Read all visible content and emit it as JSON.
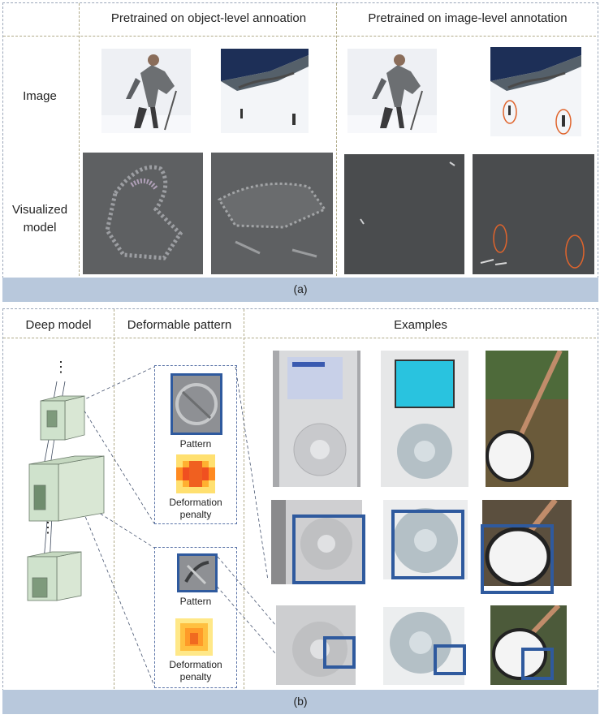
{
  "panel_a": {
    "header_object": "Pretrained on object-level annoation",
    "header_image": "Pretrained on image-level annotation",
    "row_image": "Image",
    "row_model": "Visualized model",
    "caption": "(a)"
  },
  "panel_b": {
    "col_deep": "Deep model",
    "col_pattern": "Deformable pattern",
    "col_examples": "Examples",
    "pattern_label_1": "Pattern",
    "deformation_label_1": "Deformation penalty",
    "pattern_label_2": "Pattern",
    "deformation_label_2": "Deformation penalty",
    "dots": "⋮",
    "caption": "(b)"
  },
  "colors": {
    "caption_bar": "#b8c8dc",
    "box_blue": "#2f5a9e",
    "circle_orange": "#e0642c",
    "cube_fill": "#cfe2cc"
  }
}
